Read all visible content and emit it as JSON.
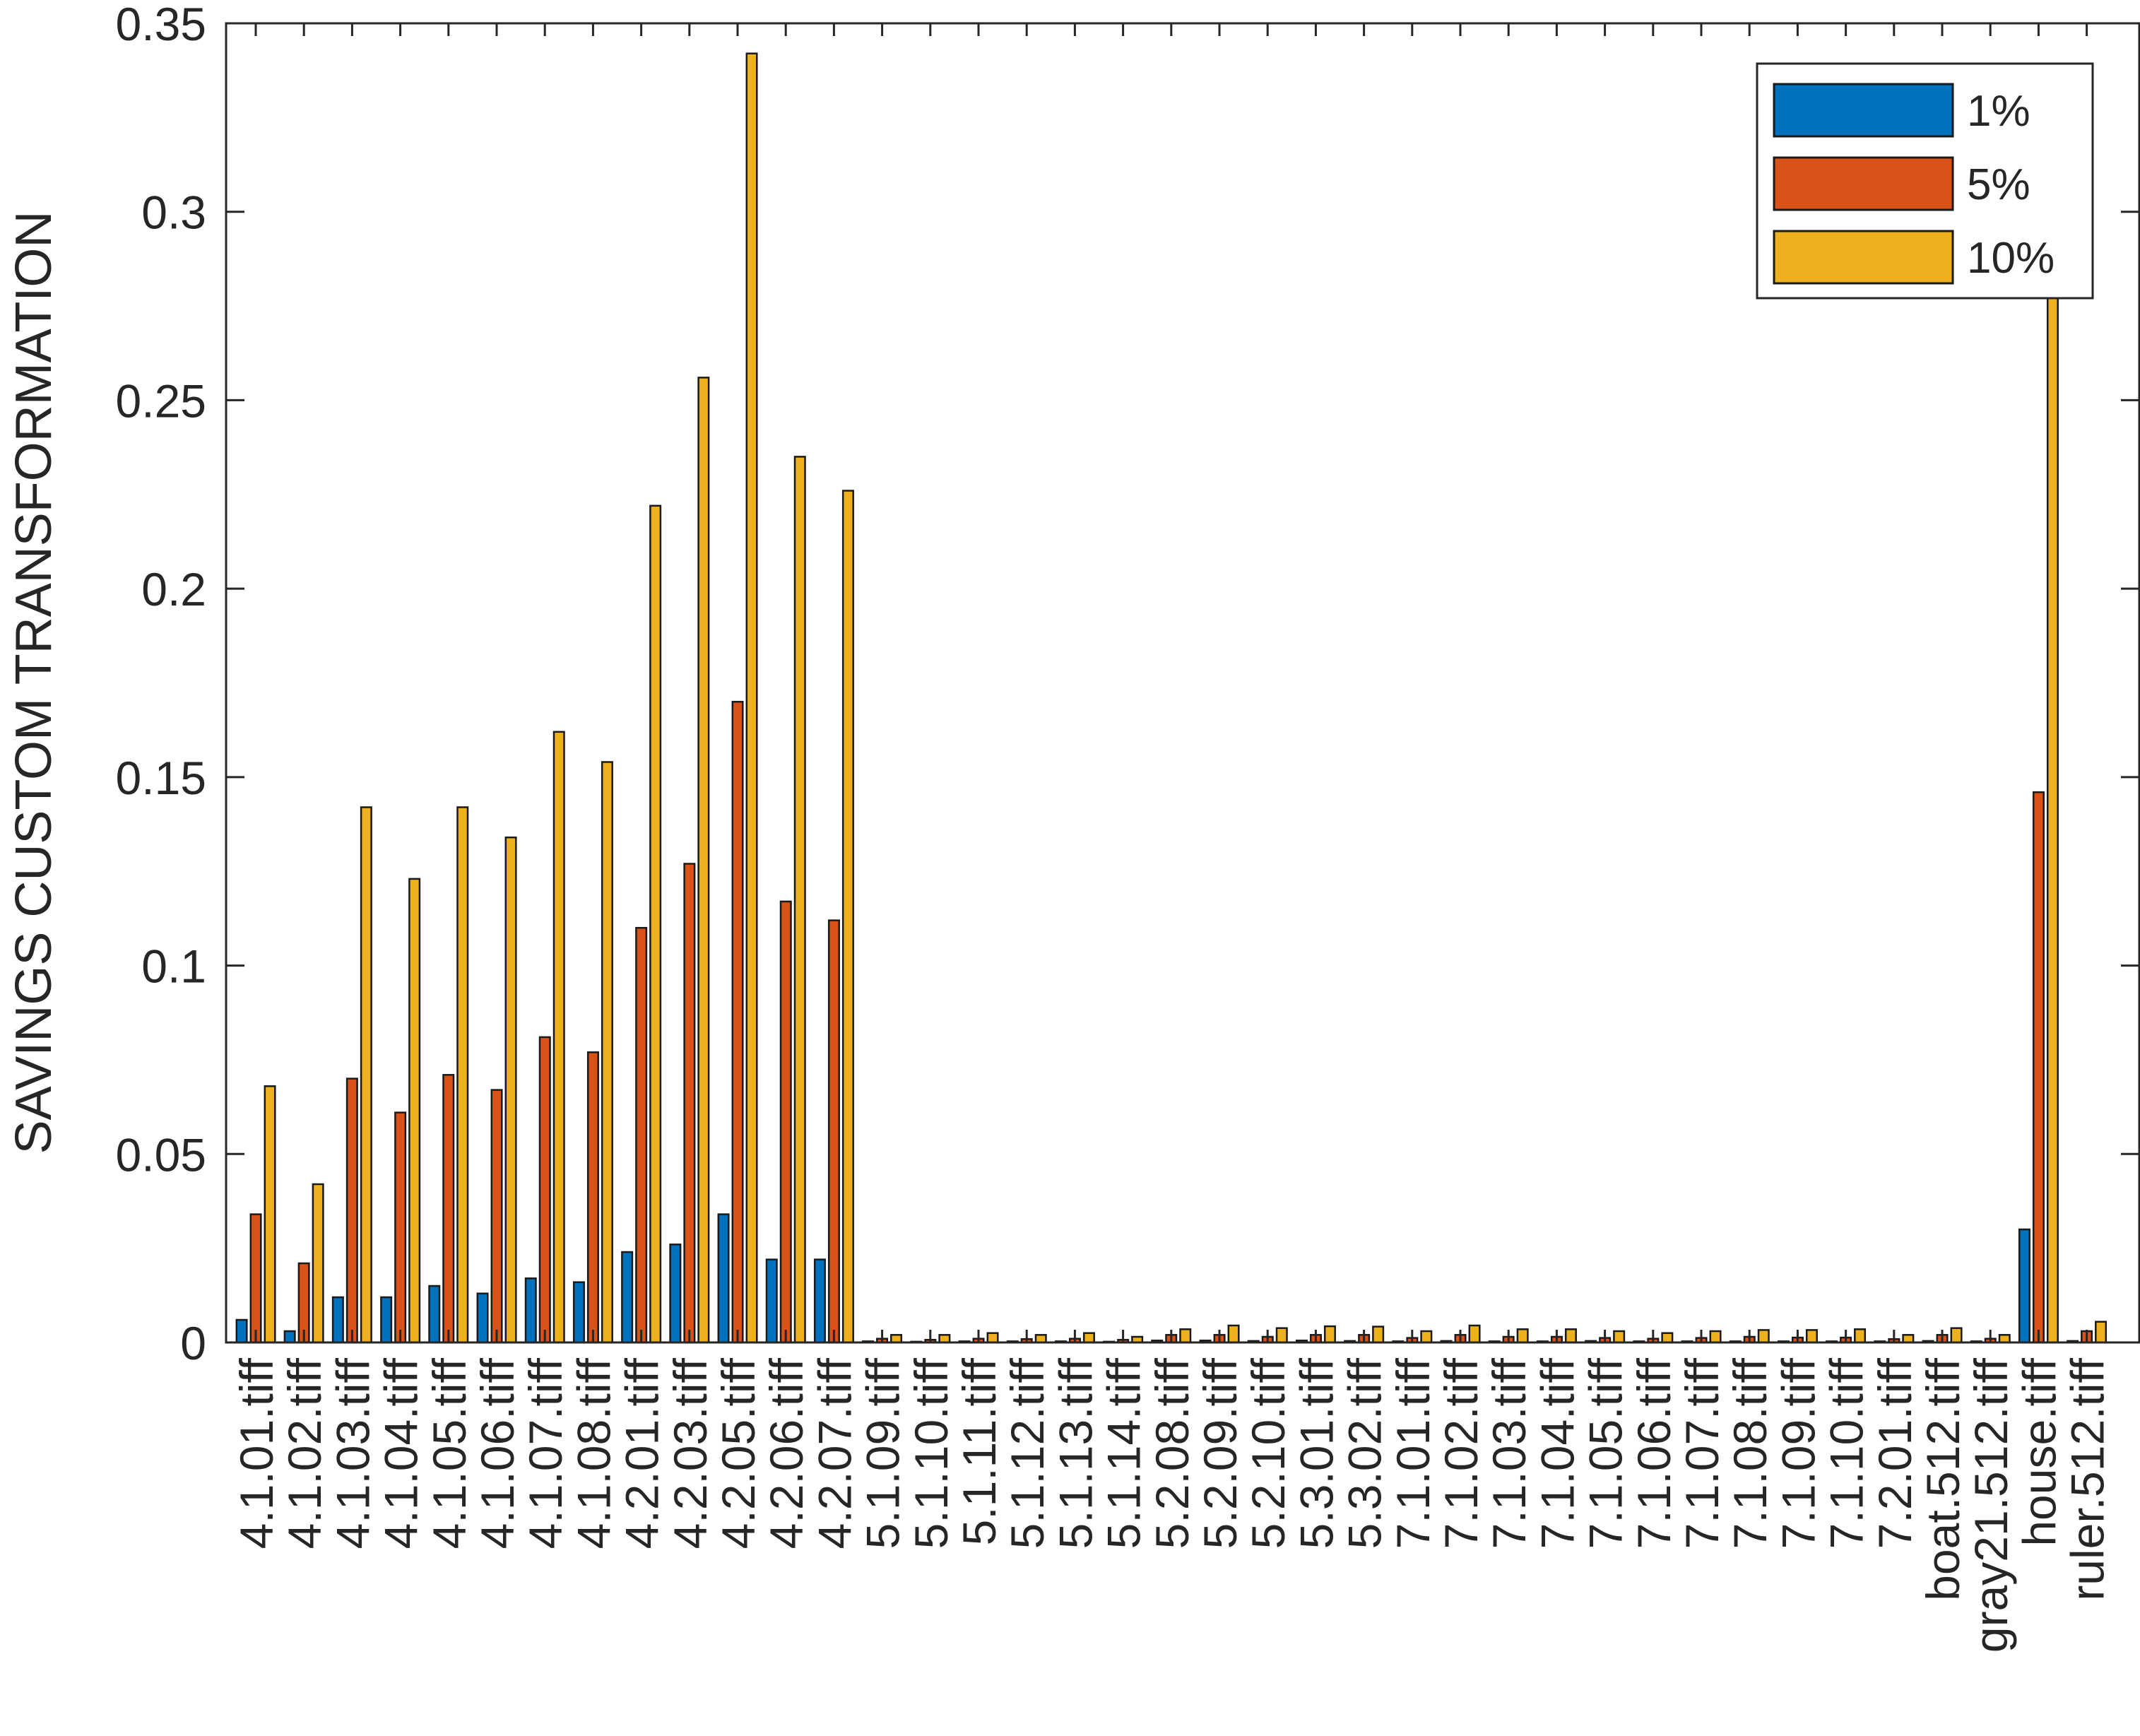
{
  "chart_data": {
    "type": "bar",
    "title": "",
    "xlabel": "",
    "ylabel": "SAVINGS CUSTOM TRANSFORMATION",
    "ylim": [
      0,
      0.35
    ],
    "yticks": [
      0,
      0.05,
      0.1,
      0.15,
      0.2,
      0.25,
      0.3,
      0.35
    ],
    "ytick_labels": [
      "0",
      "0.05",
      "0.1",
      "0.15",
      "0.2",
      "0.25",
      "0.3",
      "0.35"
    ],
    "grid": false,
    "legend_position": "top-right",
    "categories": [
      "4.1.01.tiff",
      "4.1.02.tiff",
      "4.1.03.tiff",
      "4.1.04.tiff",
      "4.1.05.tiff",
      "4.1.06.tiff",
      "4.1.07.tiff",
      "4.1.08.tiff",
      "4.2.01.tiff",
      "4.2.03.tiff",
      "4.2.05.tiff",
      "4.2.06.tiff",
      "4.2.07.tiff",
      "5.1.09.tiff",
      "5.1.10.tiff",
      "5.1.11.tiff",
      "5.1.12.tiff",
      "5.1.13.tiff",
      "5.1.14.tiff",
      "5.2.08.tiff",
      "5.2.09.tiff",
      "5.2.10.tiff",
      "5.3.01.tiff",
      "5.3.02.tiff",
      "7.1.01.tiff",
      "7.1.02.tiff",
      "7.1.03.tiff",
      "7.1.04.tiff",
      "7.1.05.tiff",
      "7.1.06.tiff",
      "7.1.07.tiff",
      "7.1.08.tiff",
      "7.1.09.tiff",
      "7.1.10.tiff",
      "7.2.01.tiff",
      "boat.512.tiff",
      "gray21.512.tiff",
      "house.tiff",
      "ruler.512.tiff"
    ],
    "series": [
      {
        "name": "1%",
        "color": "#0072BD",
        "values": [
          0.006,
          0.003,
          0.012,
          0.012,
          0.015,
          0.013,
          0.017,
          0.016,
          0.024,
          0.026,
          0.034,
          0.022,
          0.022,
          0.0003,
          0.0002,
          0.0003,
          0.0003,
          0.0003,
          0.0002,
          0.0005,
          0.0005,
          0.0004,
          0.0005,
          0.0004,
          0.0003,
          0.0004,
          0.0003,
          0.0003,
          0.0004,
          0.0003,
          0.0003,
          0.0003,
          0.0003,
          0.0003,
          0.0003,
          0.0004,
          0.0003,
          0.03,
          0.0004
        ]
      },
      {
        "name": "5%",
        "color": "#D95319",
        "values": [
          0.034,
          0.021,
          0.07,
          0.061,
          0.071,
          0.067,
          0.081,
          0.077,
          0.11,
          0.127,
          0.17,
          0.117,
          0.112,
          0.001,
          0.0007,
          0.001,
          0.0009,
          0.001,
          0.0007,
          0.002,
          0.002,
          0.0015,
          0.002,
          0.002,
          0.0012,
          0.002,
          0.0015,
          0.0015,
          0.0012,
          0.001,
          0.0012,
          0.0015,
          0.0013,
          0.0013,
          0.0009,
          0.002,
          0.001,
          0.146,
          0.003
        ]
      },
      {
        "name": "10%",
        "color": "#EDB120",
        "values": [
          0.068,
          0.042,
          0.142,
          0.123,
          0.142,
          0.134,
          0.162,
          0.154,
          0.222,
          0.256,
          0.342,
          0.235,
          0.226,
          0.002,
          0.002,
          0.0025,
          0.002,
          0.0025,
          0.0015,
          0.0035,
          0.0045,
          0.0038,
          0.0043,
          0.0042,
          0.003,
          0.0045,
          0.0035,
          0.0035,
          0.003,
          0.0025,
          0.003,
          0.0033,
          0.0033,
          0.0035,
          0.002,
          0.0038,
          0.002,
          0.282,
          0.0055
        ]
      }
    ]
  }
}
